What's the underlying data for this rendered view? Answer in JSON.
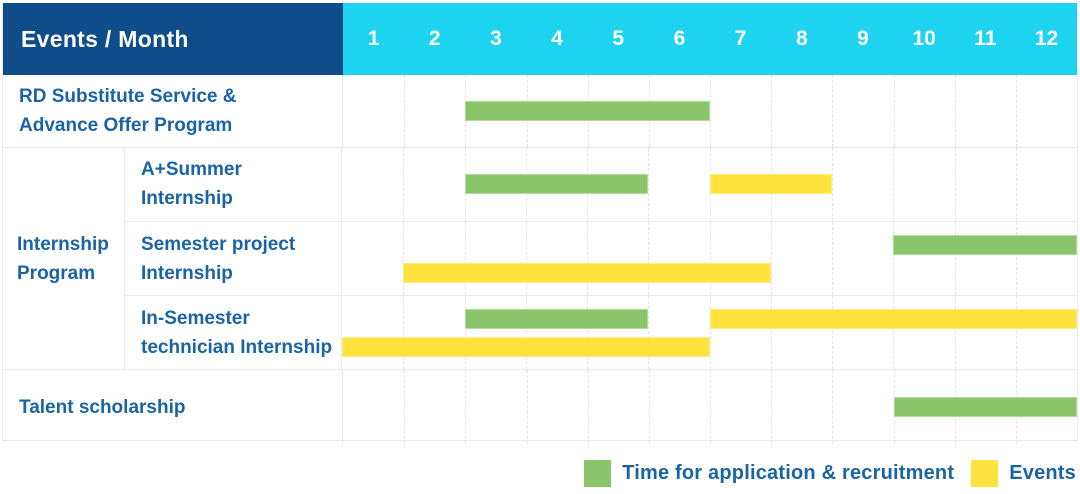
{
  "header": {
    "title": "Events / Month"
  },
  "colors": {
    "header_bg": "#0e4d8a",
    "months_bg": "#1ed3f0",
    "label_text": "#1a63a5",
    "application_green": "#8ac56b",
    "events_yellow": "#ffe23d",
    "grid_line": "#e3e3e3",
    "row_border": "#e9e9e9"
  },
  "chart_data": {
    "type": "bar",
    "variant": "gantt",
    "title": "Events / Month",
    "x_axis": {
      "label": "Month",
      "ticks": [
        "1",
        "2",
        "3",
        "4",
        "5",
        "6",
        "7",
        "8",
        "9",
        "10",
        "11",
        "12"
      ],
      "range": [
        1,
        12
      ]
    },
    "grid": true,
    "legend_position": "bottom-right",
    "series": [
      {
        "id": "application",
        "label": "Time for application & recruitment",
        "color": "#8ac56b"
      },
      {
        "id": "events",
        "label": "Events",
        "color": "#ffe23d"
      }
    ],
    "rows": [
      {
        "label": "RD Substitute Service & Advance Offer Program",
        "lines": [
          "RD Substitute Service &",
          "Advance Offer Program"
        ],
        "group": null,
        "bars": [
          {
            "series": "application",
            "start_month": 3,
            "end_month": 6,
            "lane": "mid"
          }
        ]
      },
      {
        "label": "A+Summer Internship",
        "lines": [
          "A+Summer",
          "Internship"
        ],
        "group": "Internship Program",
        "group_lines": [
          "Internship",
          "Program"
        ],
        "bars": [
          {
            "series": "application",
            "start_month": 3,
            "end_month": 5,
            "lane": "mid"
          },
          {
            "series": "events",
            "start_month": 7,
            "end_month": 8,
            "lane": "mid"
          }
        ]
      },
      {
        "label": "Semester project Internship",
        "lines": [
          "Semester project",
          "Internship"
        ],
        "group": "Internship Program",
        "bars": [
          {
            "series": "application",
            "start_month": 10,
            "end_month": 12,
            "lane": "top"
          },
          {
            "series": "events",
            "start_month": 2,
            "end_month": 7,
            "lane": "bottom"
          }
        ]
      },
      {
        "label": "In-Semester technician Internship",
        "lines": [
          "In-Semester",
          "technician Internship"
        ],
        "group": "Internship Program",
        "bars": [
          {
            "series": "application",
            "start_month": 3,
            "end_month": 5,
            "lane": "top"
          },
          {
            "series": "events",
            "start_month": 7,
            "end_month": 12,
            "lane": "top"
          },
          {
            "series": "events",
            "start_month": 1,
            "end_month": 6,
            "lane": "bottom"
          }
        ]
      },
      {
        "label": "Talent scholarship",
        "lines": [
          "Talent scholarship"
        ],
        "group": null,
        "bars": [
          {
            "series": "application",
            "start_month": 10,
            "end_month": 12,
            "lane": "mid"
          }
        ]
      }
    ]
  },
  "legend": {
    "items": [
      {
        "series": "application",
        "label": "Time for application & recruitment"
      },
      {
        "series": "events",
        "label": "Events"
      }
    ]
  }
}
